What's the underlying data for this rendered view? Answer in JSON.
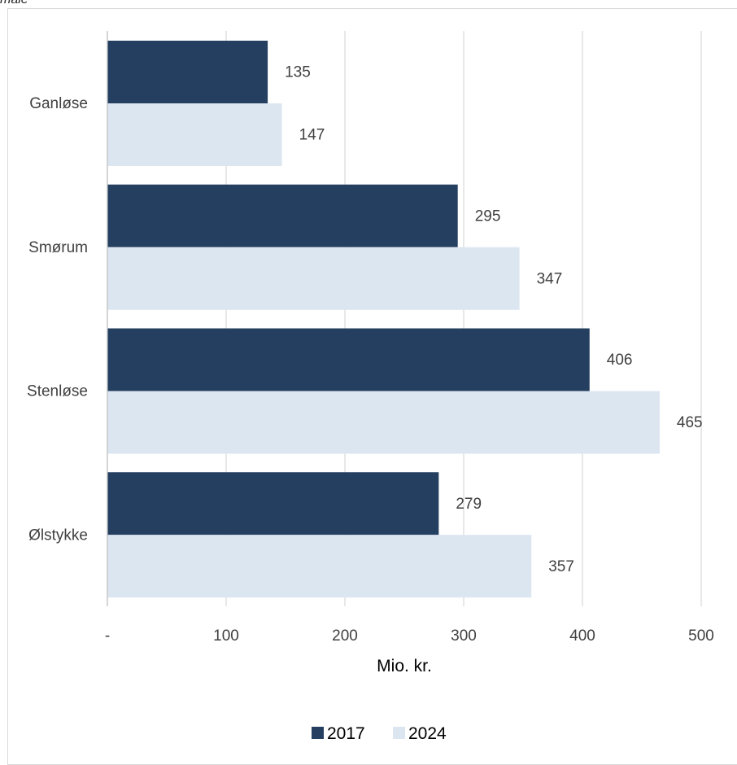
{
  "top_caption": "måle",
  "chart_data": {
    "type": "bar",
    "orientation": "horizontal",
    "categories": [
      "Ganløse",
      "Smørum",
      "Stenløse",
      "Ølstykke"
    ],
    "series": [
      {
        "name": "2017",
        "values": [
          135,
          295,
          406,
          279
        ],
        "color": "#243F60"
      },
      {
        "name": "2024",
        "values": [
          147,
          347,
          465,
          357
        ],
        "color": "#DCE6F1"
      }
    ],
    "data_labels": [
      [
        "135",
        "295",
        "406",
        "279"
      ],
      [
        "147",
        "347",
        "465",
        "357"
      ]
    ],
    "xlabel": "Mio. kr.",
    "xlim": [
      0,
      500
    ],
    "xticks": [
      0,
      100,
      200,
      300,
      400,
      500
    ],
    "xtick_labels": [
      "-",
      "100",
      "200",
      "300",
      "400",
      "500"
    ],
    "grid": true,
    "legend_position": "bottom"
  }
}
